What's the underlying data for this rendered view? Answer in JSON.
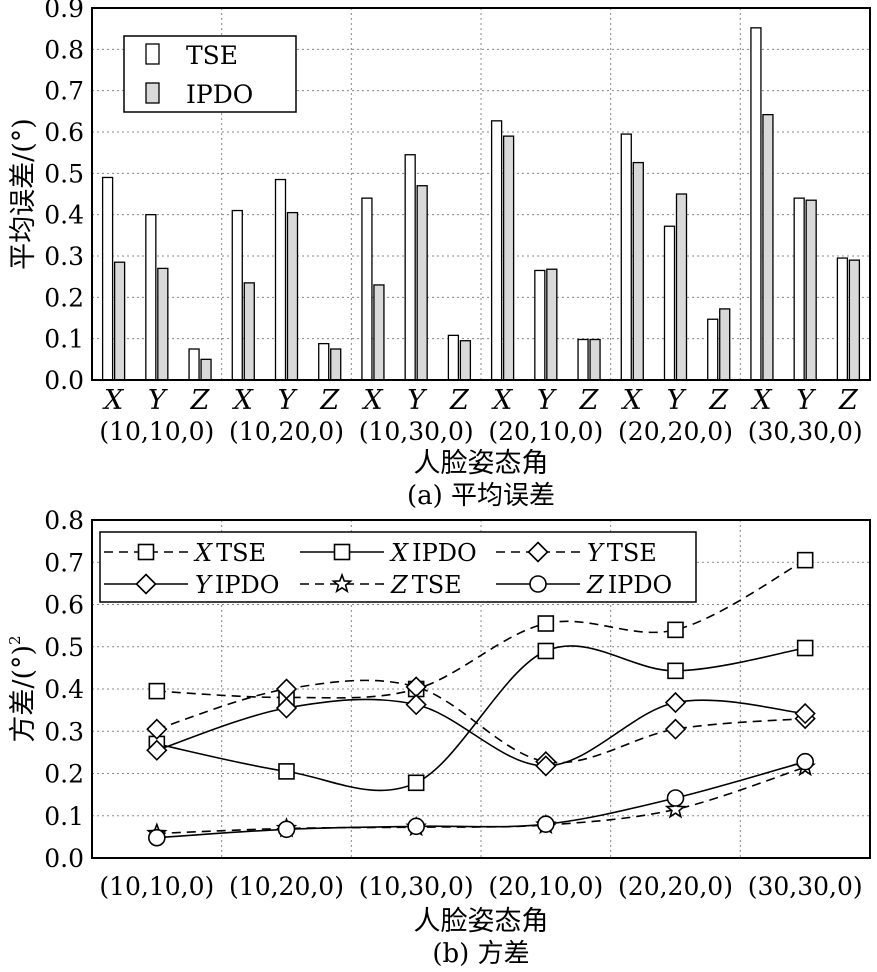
{
  "chart_data": [
    {
      "type": "bar",
      "caption": "(a) 平均误差",
      "xlabel": "人脸姿态角",
      "ylabel": "平均误差/(°)",
      "ylim": [
        0,
        0.9
      ],
      "yticks": [
        "0.0",
        "0.1",
        "0.2",
        "0.3",
        "0.4",
        "0.5",
        "0.6",
        "0.7",
        "0.8",
        "0.9"
      ],
      "grid": true,
      "legend_position": "top-left",
      "groups": [
        "(10,10,0)",
        "(10,20,0)",
        "(10,30,0)",
        "(20,10,0)",
        "(20,20,0)",
        "(30,30,0)"
      ],
      "categories": [
        "X",
        "Y",
        "Z",
        "X",
        "Y",
        "Z",
        "X",
        "Y",
        "Z",
        "X",
        "Y",
        "Z",
        "X",
        "Y",
        "Z",
        "X",
        "Y",
        "Z"
      ],
      "series": [
        {
          "name": "TSE",
          "color": "#ffffff",
          "values": [
            0.49,
            0.4,
            0.075,
            0.41,
            0.485,
            0.088,
            0.44,
            0.545,
            0.108,
            0.627,
            0.265,
            0.098,
            0.595,
            0.372,
            0.147,
            0.852,
            0.44,
            0.295
          ]
        },
        {
          "name": "IPDO",
          "color": "#d9d9d9",
          "values": [
            0.285,
            0.27,
            0.05,
            0.235,
            0.405,
            0.075,
            0.23,
            0.47,
            0.095,
            0.59,
            0.268,
            0.098,
            0.526,
            0.45,
            0.172,
            0.642,
            0.435,
            0.29
          ]
        }
      ]
    },
    {
      "type": "line",
      "caption": "(b) 方差",
      "xlabel": "人脸姿态角",
      "ylabel": "方差/(°)",
      "ylabel_sup": "2",
      "ylim": [
        0,
        0.8
      ],
      "yticks": [
        "0.0",
        "0.1",
        "0.2",
        "0.3",
        "0.4",
        "0.5",
        "0.6",
        "0.7",
        "0.8"
      ],
      "grid": true,
      "legend_position": "top",
      "categories": [
        "(10,10,0)",
        "(10,20,0)",
        "(10,30,0)",
        "(20,10,0)",
        "(20,20,0)",
        "(30,30,0)"
      ],
      "series": [
        {
          "name": "TSE",
          "axis": "X",
          "marker": "square",
          "dashed": true,
          "values": [
            0.395,
            0.38,
            0.4,
            0.555,
            0.54,
            0.705
          ]
        },
        {
          "name": "IPDO",
          "axis": "X",
          "marker": "square",
          "dashed": false,
          "values": [
            0.27,
            0.205,
            0.178,
            0.49,
            0.443,
            0.497
          ]
        },
        {
          "name": "TSE",
          "axis": "Y",
          "marker": "diamond",
          "dashed": true,
          "values": [
            0.305,
            0.4,
            0.405,
            0.228,
            0.305,
            0.33
          ]
        },
        {
          "name": "IPDO",
          "axis": "Y",
          "marker": "diamond",
          "dashed": false,
          "values": [
            0.255,
            0.355,
            0.363,
            0.218,
            0.368,
            0.342
          ]
        },
        {
          "name": "TSE",
          "axis": "Z",
          "marker": "star",
          "dashed": true,
          "values": [
            0.058,
            0.07,
            0.073,
            0.078,
            0.115,
            0.215
          ]
        },
        {
          "name": "IPDO",
          "axis": "Z",
          "marker": "circle",
          "dashed": false,
          "values": [
            0.048,
            0.068,
            0.075,
            0.08,
            0.142,
            0.228
          ]
        }
      ]
    }
  ]
}
